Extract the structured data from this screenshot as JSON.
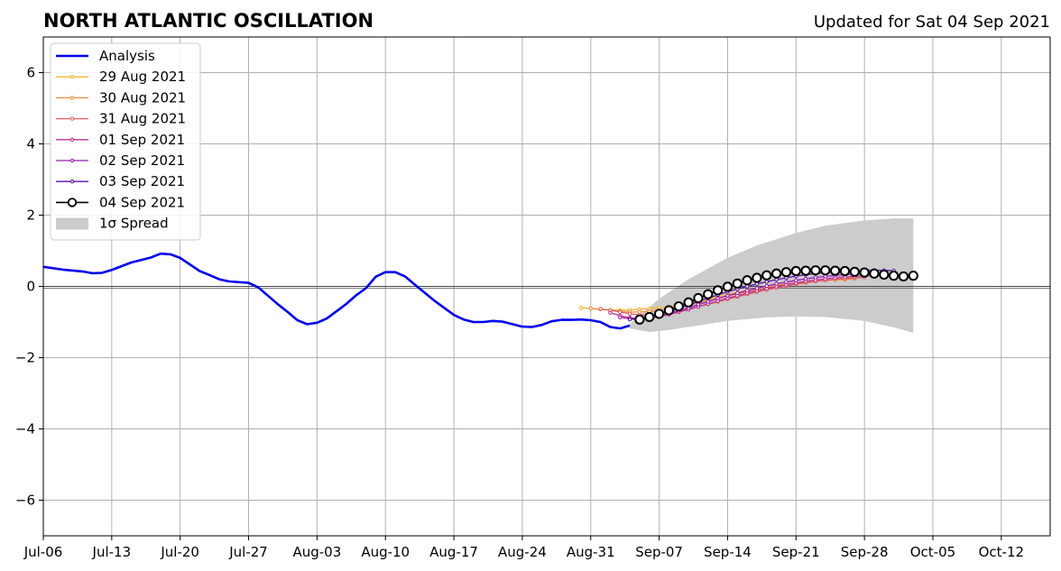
{
  "title": "NORTH ATLANTIC OSCILLATION",
  "subtitle": "Updated for Sat 04 Sep 2021",
  "chart_data": {
    "type": "line",
    "title": "NORTH ATLANTIC OSCILLATION",
    "xlabel": "",
    "ylabel": "",
    "xlim": [
      "2021-07-06",
      "2021-10-17"
    ],
    "ylim": [
      -7,
      7
    ],
    "x_ticks": [
      "2021-07-06",
      "2021-07-13",
      "2021-07-20",
      "2021-07-27",
      "2021-08-03",
      "2021-08-10",
      "2021-08-17",
      "2021-08-24",
      "2021-08-31",
      "2021-09-07",
      "2021-09-14",
      "2021-09-21",
      "2021-09-28",
      "2021-10-05",
      "2021-10-12"
    ],
    "x_tick_labels": [
      "Jul-06",
      "Jul-13",
      "Jul-20",
      "Jul-27",
      "Aug-03",
      "Aug-10",
      "Aug-17",
      "Aug-24",
      "Aug-31",
      "Sep-07",
      "Sep-14",
      "Sep-21",
      "Sep-28",
      "Oct-05",
      "Oct-12"
    ],
    "y_ticks": [
      -6,
      -4,
      -2,
      0,
      2,
      4,
      6
    ],
    "y_tick_labels": [
      "−6",
      "−4",
      "−2",
      "0",
      "2",
      "4",
      "6"
    ],
    "grid": true,
    "zero_line": true,
    "legend_position": "top-left",
    "analysis": {
      "name": "Analysis",
      "color": "#0000ee",
      "points": [
        [
          "2021-07-06",
          0.55
        ],
        [
          "2021-07-08",
          0.47
        ],
        [
          "2021-07-10",
          0.42
        ],
        [
          "2021-07-11",
          0.37
        ],
        [
          "2021-07-12",
          0.38
        ],
        [
          "2021-07-13",
          0.46
        ],
        [
          "2021-07-15",
          0.67
        ],
        [
          "2021-07-17",
          0.81
        ],
        [
          "2021-07-18",
          0.92
        ],
        [
          "2021-07-19",
          0.9
        ],
        [
          "2021-07-20",
          0.8
        ],
        [
          "2021-07-22",
          0.43
        ],
        [
          "2021-07-23",
          0.32
        ],
        [
          "2021-07-24",
          0.2
        ],
        [
          "2021-07-25",
          0.14
        ],
        [
          "2021-07-27",
          0.1
        ],
        [
          "2021-07-28",
          -0.03
        ],
        [
          "2021-07-30",
          -0.5
        ],
        [
          "2021-07-31",
          -0.72
        ],
        [
          "2021-08-01",
          -0.95
        ],
        [
          "2021-08-02",
          -1.06
        ],
        [
          "2021-08-03",
          -1.02
        ],
        [
          "2021-08-04",
          -0.9
        ],
        [
          "2021-08-06",
          -0.49
        ],
        [
          "2021-08-07",
          -0.25
        ],
        [
          "2021-08-08",
          -0.05
        ],
        [
          "2021-08-09",
          0.27
        ],
        [
          "2021-08-10",
          0.4
        ],
        [
          "2021-08-11",
          0.4
        ],
        [
          "2021-08-12",
          0.28
        ],
        [
          "2021-08-13",
          0.05
        ],
        [
          "2021-08-15",
          -0.4
        ],
        [
          "2021-08-16",
          -0.6
        ],
        [
          "2021-08-17",
          -0.8
        ],
        [
          "2021-08-18",
          -0.93
        ],
        [
          "2021-08-19",
          -1.0
        ],
        [
          "2021-08-20",
          -1.0
        ],
        [
          "2021-08-21",
          -0.97
        ],
        [
          "2021-08-22",
          -0.99
        ],
        [
          "2021-08-23",
          -1.06
        ],
        [
          "2021-08-24",
          -1.13
        ],
        [
          "2021-08-25",
          -1.14
        ],
        [
          "2021-08-26",
          -1.08
        ],
        [
          "2021-08-27",
          -0.98
        ],
        [
          "2021-08-28",
          -0.94
        ],
        [
          "2021-08-29",
          -0.94
        ],
        [
          "2021-08-30",
          -0.93
        ],
        [
          "2021-08-31",
          -0.95
        ],
        [
          "2021-09-01",
          -1.0
        ],
        [
          "2021-09-02",
          -1.14
        ],
        [
          "2021-09-03",
          -1.18
        ],
        [
          "2021-09-04",
          -1.1
        ]
      ]
    },
    "spread": {
      "name": "1σ Spread",
      "color": "#cccccc",
      "upper": [
        [
          "2021-09-04",
          -1.05
        ],
        [
          "2021-09-07",
          -0.35
        ],
        [
          "2021-09-10",
          0.2
        ],
        [
          "2021-09-14",
          0.8
        ],
        [
          "2021-09-17",
          1.15
        ],
        [
          "2021-09-21",
          1.5
        ],
        [
          "2021-09-24",
          1.7
        ],
        [
          "2021-09-28",
          1.85
        ],
        [
          "2021-10-01",
          1.91
        ],
        [
          "2021-10-03",
          1.91
        ]
      ],
      "lower": [
        [
          "2021-09-04",
          -1.18
        ],
        [
          "2021-09-06",
          -1.28
        ],
        [
          "2021-09-08",
          -1.22
        ],
        [
          "2021-09-11",
          -1.1
        ],
        [
          "2021-09-14",
          -0.97
        ],
        [
          "2021-09-18",
          -0.87
        ],
        [
          "2021-09-21",
          -0.84
        ],
        [
          "2021-09-24",
          -0.86
        ],
        [
          "2021-09-28",
          -0.97
        ],
        [
          "2021-10-01",
          -1.15
        ],
        [
          "2021-10-03",
          -1.3
        ]
      ]
    },
    "series": [
      {
        "name": "29 Aug 2021",
        "color": "#f9b233",
        "start": "2021-08-30",
        "values": [
          -0.6,
          -0.62,
          -0.64,
          -0.66,
          -0.66,
          -0.66,
          -0.64,
          -0.62,
          -0.6,
          -0.57,
          -0.52,
          -0.47,
          -0.41,
          -0.35,
          -0.29,
          -0.23,
          -0.17,
          -0.11,
          -0.06,
          -0.01,
          0.03,
          0.07,
          0.1,
          0.13,
          0.15,
          0.17,
          0.18,
          0.19
        ]
      },
      {
        "name": "30 Aug 2021",
        "color": "#f08a3c",
        "start": "2021-08-31",
        "values": [
          -0.62,
          -0.64,
          -0.67,
          -0.7,
          -0.72,
          -0.72,
          -0.7,
          -0.67,
          -0.63,
          -0.58,
          -0.52,
          -0.46,
          -0.4,
          -0.33,
          -0.27,
          -0.21,
          -0.15,
          -0.09,
          -0.04,
          0.01,
          0.05,
          0.09,
          0.12,
          0.15,
          0.17,
          0.19,
          0.2,
          0.21
        ]
      },
      {
        "name": "31 Aug 2021",
        "color": "#e05c66",
        "start": "2021-09-01",
        "values": [
          -0.63,
          -0.67,
          -0.72,
          -0.77,
          -0.8,
          -0.81,
          -0.79,
          -0.75,
          -0.7,
          -0.64,
          -0.57,
          -0.5,
          -0.43,
          -0.36,
          -0.29,
          -0.22,
          -0.16,
          -0.1,
          -0.04,
          0.01,
          0.06,
          0.1,
          0.14,
          0.17,
          0.2,
          0.22,
          0.24,
          0.25
        ]
      },
      {
        "name": "01 Sep 2021",
        "color": "#c02f8a",
        "start": "2021-09-02",
        "values": [
          -0.74,
          -0.82,
          -0.88,
          -0.9,
          -0.89,
          -0.85,
          -0.79,
          -0.72,
          -0.65,
          -0.57,
          -0.49,
          -0.41,
          -0.33,
          -0.26,
          -0.19,
          -0.12,
          -0.06,
          0.0,
          0.05,
          0.1,
          0.14,
          0.18,
          0.21,
          0.24,
          0.26,
          0.28,
          0.29,
          0.3
        ]
      },
      {
        "name": "02 Sep 2021",
        "color": "#9b1ab8",
        "start": "2021-09-03",
        "values": [
          -0.87,
          -0.91,
          -0.91,
          -0.88,
          -0.83,
          -0.76,
          -0.68,
          -0.6,
          -0.51,
          -0.43,
          -0.34,
          -0.26,
          -0.19,
          -0.12,
          -0.05,
          0.01,
          0.07,
          0.12,
          0.17,
          0.21,
          0.25,
          0.28,
          0.31,
          0.33,
          0.35,
          0.36,
          0.37,
          0.38
        ]
      },
      {
        "name": "03 Sep 2021",
        "color": "#5c0fa3",
        "start": "2021-09-04",
        "values": [
          -0.93,
          -0.91,
          -0.86,
          -0.79,
          -0.71,
          -0.62,
          -0.52,
          -0.42,
          -0.33,
          -0.24,
          -0.15,
          -0.07,
          0.0,
          0.07,
          0.13,
          0.19,
          0.24,
          0.29,
          0.33,
          0.36,
          0.39,
          0.41,
          0.43,
          0.44,
          0.45,
          0.45,
          0.45,
          0.44
        ]
      },
      {
        "name": "04 Sep 2021",
        "color": "#000000",
        "start": "2021-09-05",
        "markers": "open-circle",
        "values": [
          -0.93,
          -0.86,
          -0.77,
          -0.67,
          -0.56,
          -0.45,
          -0.33,
          -0.22,
          -0.11,
          -0.01,
          0.08,
          0.17,
          0.24,
          0.31,
          0.36,
          0.4,
          0.43,
          0.44,
          0.45,
          0.45,
          0.44,
          0.43,
          0.41,
          0.39,
          0.36,
          0.33,
          0.3,
          0.28,
          0.3
        ]
      }
    ]
  }
}
